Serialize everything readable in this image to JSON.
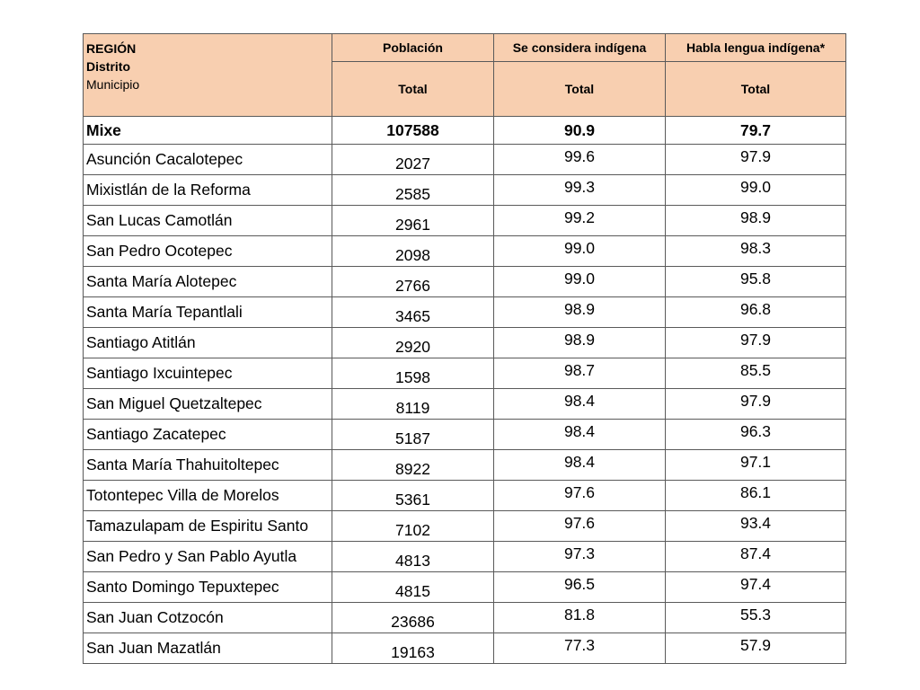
{
  "header": {
    "region_label": "REGIÓN",
    "district_label": "Distrito",
    "municipality_label": "Municipio",
    "col_poblacion": "Población",
    "col_indigena": "Se considera indígena",
    "col_lengua": "Habla lengua indígena*",
    "sub_total": "Total"
  },
  "summary": {
    "name": "Mixe",
    "poblacion": "107588",
    "indigena": "90.9",
    "lengua": "79.7"
  },
  "rows": [
    {
      "name": "Asunción Cacalotepec",
      "poblacion": "2027",
      "indigena": "99.6",
      "lengua": "97.9"
    },
    {
      "name": "Mixistlán de la Reforma",
      "poblacion": "2585",
      "indigena": "99.3",
      "lengua": "99.0"
    },
    {
      "name": "San Lucas Camotlán",
      "poblacion": "2961",
      "indigena": "99.2",
      "lengua": "98.9"
    },
    {
      "name": "San Pedro Ocotepec",
      "poblacion": "2098",
      "indigena": "99.0",
      "lengua": "98.3"
    },
    {
      "name": "Santa María Alotepec",
      "poblacion": "2766",
      "indigena": "99.0",
      "lengua": "95.8"
    },
    {
      "name": "Santa María Tepantlali",
      "poblacion": "3465",
      "indigena": "98.9",
      "lengua": "96.8"
    },
    {
      "name": "Santiago Atitlán",
      "poblacion": "2920",
      "indigena": "98.9",
      "lengua": "97.9"
    },
    {
      "name": "Santiago Ixcuintepec",
      "poblacion": "1598",
      "indigena": "98.7",
      "lengua": "85.5"
    },
    {
      "name": "San Miguel Quetzaltepec",
      "poblacion": "8119",
      "indigena": "98.4",
      "lengua": "97.9"
    },
    {
      "name": "Santiago Zacatepec",
      "poblacion": "5187",
      "indigena": "98.4",
      "lengua": "96.3"
    },
    {
      "name": "Santa María Thahuitoltepec",
      "poblacion": "8922",
      "indigena": "98.4",
      "lengua": "97.1"
    },
    {
      "name": "Totontepec Villa de Morelos",
      "poblacion": "5361",
      "indigena": "97.6",
      "lengua": "86.1"
    },
    {
      "name": "Tamazulapam de Espiritu Santo",
      "poblacion": "7102",
      "indigena": "97.6",
      "lengua": "93.4"
    },
    {
      "name": "San Pedro y San Pablo Ayutla",
      "poblacion": "4813",
      "indigena": "97.3",
      "lengua": "87.4"
    },
    {
      "name": "Santo Domingo Tepuxtepec",
      "poblacion": "4815",
      "indigena": "96.5",
      "lengua": "97.4"
    },
    {
      "name": "San Juan Cotzocón",
      "poblacion": "23686",
      "indigena": "81.8",
      "lengua": "55.3"
    },
    {
      "name": "San Juan Mazatlán",
      "poblacion": "19163",
      "indigena": "77.3",
      "lengua": "57.9"
    }
  ]
}
